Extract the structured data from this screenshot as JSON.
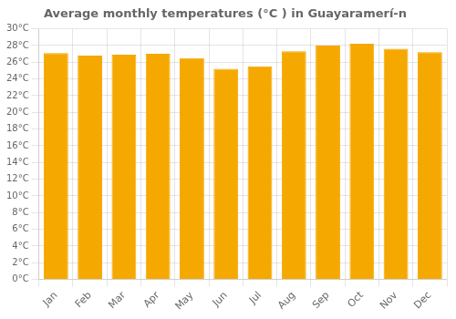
{
  "chart_data": {
    "type": "bar",
    "title": "Average monthly temperatures (°C ) in Guayaramerí-n",
    "categories": [
      "Jan",
      "Feb",
      "Mar",
      "Apr",
      "May",
      "Jun",
      "Jul",
      "Aug",
      "Sep",
      "Oct",
      "Nov",
      "Dec"
    ],
    "values": [
      27.1,
      26.8,
      26.9,
      27.0,
      26.5,
      25.2,
      25.5,
      27.3,
      28.0,
      28.2,
      27.6,
      27.2
    ],
    "color": "#F5A800",
    "ylim": [
      0,
      30
    ],
    "yticks": [
      {
        "value": 0,
        "label": "0°C"
      },
      {
        "value": 2,
        "label": "2°C"
      },
      {
        "value": 4,
        "label": "4°C"
      },
      {
        "value": 6,
        "label": "6°C"
      },
      {
        "value": 8,
        "label": "8°C"
      },
      {
        "value": 10,
        "label": "10°C"
      },
      {
        "value": 12,
        "label": "12°C"
      },
      {
        "value": 14,
        "label": "14°C"
      },
      {
        "value": 16,
        "label": "16°C"
      },
      {
        "value": 18,
        "label": "18°C"
      },
      {
        "value": 20,
        "label": "20°C"
      },
      {
        "value": 22,
        "label": "22°C"
      },
      {
        "value": 24,
        "label": "24°C"
      },
      {
        "value": 26,
        "label": "26°C"
      },
      {
        "value": 28,
        "label": "28°C"
      },
      {
        "value": 30,
        "label": "30°C"
      }
    ],
    "grid": true
  }
}
